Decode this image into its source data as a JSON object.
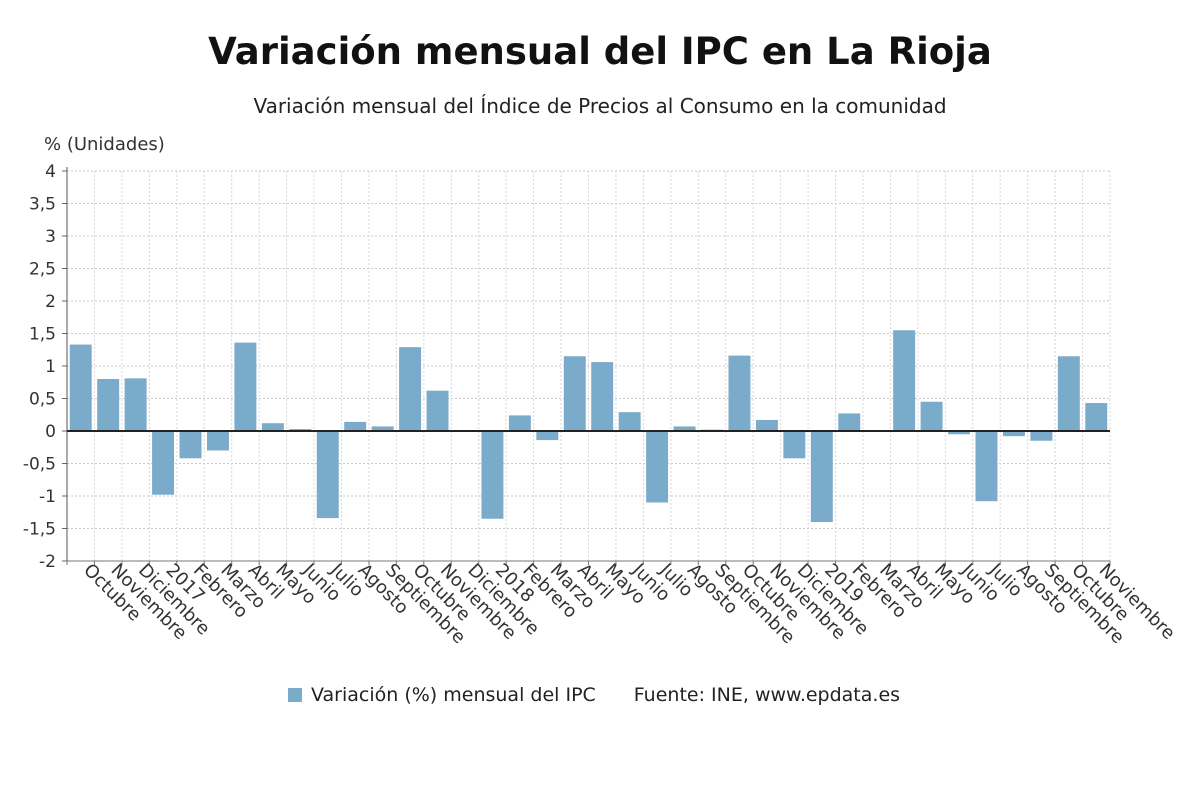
{
  "chart_data": {
    "type": "bar",
    "title": "Variación mensual del IPC en La Rioja",
    "subtitle": "Variación mensual del Índice de Precios al Consumo en la comunidad",
    "ylabel": "% (Unidades)",
    "ylim": [
      -2,
      4
    ],
    "yticks": [
      "4",
      "3,5",
      "3",
      "2,5",
      "2",
      "1,5",
      "1",
      "0,5",
      "0",
      "-0,5",
      "-1",
      "-1,5",
      "-2"
    ],
    "grid": true,
    "legend_position": "bottom",
    "color": "#7aabcb",
    "categories": [
      "Octubre",
      "Noviembre",
      "Diciembre",
      "2017",
      "Febrero",
      "Marzo",
      "Abril",
      "Mayo",
      "Junio",
      "Julio",
      "Agosto",
      "Septiembre",
      "Octubre",
      "Noviembre",
      "Diciembre",
      "2018",
      "Febrero",
      "Marzo",
      "Abril",
      "Mayo",
      "Junio",
      "Julio",
      "Agosto",
      "Septiembre",
      "Octubre",
      "Noviembre",
      "Diciembre",
      "2019",
      "Febrero",
      "Marzo",
      "Abril",
      "Mayo",
      "Junio",
      "Julio",
      "Agosto",
      "Septiembre",
      "Octubre",
      "Noviembre"
    ],
    "series": [
      {
        "name": "Variación (%) mensual del IPC",
        "values": [
          1.33,
          0.8,
          0.81,
          -0.98,
          -0.42,
          -0.3,
          1.36,
          0.12,
          0.03,
          -1.34,
          0.14,
          0.07,
          1.29,
          0.62,
          0.01,
          -1.35,
          0.24,
          -0.14,
          1.15,
          1.06,
          0.29,
          -1.1,
          0.07,
          0.02,
          1.16,
          0.17,
          -0.42,
          -1.4,
          0.27,
          0.01,
          1.55,
          0.45,
          -0.05,
          -1.08,
          -0.08,
          -0.15,
          1.15,
          0.43
        ]
      }
    ]
  },
  "legend": {
    "series_label": "Variación (%) mensual del IPC",
    "source": "Fuente: INE, www.epdata.es"
  }
}
